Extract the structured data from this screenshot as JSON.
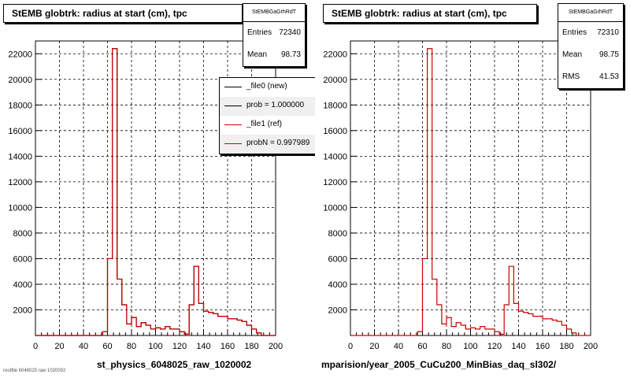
{
  "colors": {
    "new": "#000000",
    "ref": "#cc0000",
    "grid": "#000000",
    "frame": "#000000"
  },
  "left": {
    "title": "StEMB globtrk: radius at start (cm), tpc",
    "stats": {
      "name": "StEMBGaGrhRdT",
      "entries_label": "Entries",
      "entries": "72340",
      "mean_label": "Mean",
      "mean": "98.73"
    },
    "legend": [
      {
        "label": "_file0 (new)",
        "color": "#000000"
      },
      {
        "label": "prob = 1.000000",
        "color": "#000000"
      },
      {
        "label": "_file1 (ref)",
        "color": "#cc0000"
      },
      {
        "label": "probN = 0.997989",
        "color": "#cc0000"
      }
    ],
    "x_caption": "st_physics_6048025_raw_1020002",
    "footer": "rootfile 6048025 raw 1020002"
  },
  "right": {
    "title": "StEMB globtrk: radius at start (cm), tpc",
    "stats": {
      "name": "StEMBGaGrhRdT",
      "entries_label": "Entries",
      "entries": "72310",
      "mean_label": "Mean",
      "mean": "98.75",
      "rms_label": "RMS",
      "rms": "41.53"
    },
    "x_caption": "mparision/year_2005_CuCu200_MinBias_daq_sl302/"
  },
  "chart_data": [
    {
      "type": "histogram",
      "title": "StEMB globtrk: radius at start (cm), tpc",
      "xlabel": "st_physics_6048025_raw_1020002",
      "xlim": [
        0,
        200
      ],
      "ylim": [
        0,
        23000
      ],
      "x_ticks": [
        0,
        20,
        40,
        60,
        80,
        100,
        120,
        140,
        160,
        180,
        200
      ],
      "y_ticks": [
        2000,
        4000,
        6000,
        8000,
        10000,
        12000,
        14000,
        16000,
        18000,
        20000,
        22000
      ],
      "grid": true,
      "bin_width": 4,
      "bin_edges_start": 0,
      "series": [
        {
          "name": "_file0 (new)",
          "color": "#000000",
          "values": [
            0,
            0,
            0,
            0,
            0,
            0,
            0,
            0,
            0,
            0,
            0,
            0,
            0,
            0,
            300,
            6000,
            22400,
            4400,
            2400,
            900,
            1400,
            700,
            1000,
            800,
            500,
            600,
            500,
            700,
            500,
            500,
            300,
            100,
            2400,
            5400,
            2500,
            1900,
            1800,
            1700,
            1500,
            1500,
            1300,
            1300,
            1200,
            1100,
            800,
            500,
            200,
            0,
            0,
            0
          ]
        },
        {
          "name": "_file1 (ref)",
          "color": "#cc0000",
          "values": [
            0,
            0,
            0,
            0,
            0,
            0,
            0,
            0,
            0,
            0,
            0,
            0,
            0,
            0,
            300,
            6000,
            22400,
            4400,
            2400,
            900,
            1400,
            700,
            1000,
            800,
            500,
            600,
            500,
            700,
            500,
            500,
            300,
            100,
            2400,
            5400,
            2500,
            1900,
            1800,
            1700,
            1500,
            1500,
            1300,
            1300,
            1200,
            1100,
            800,
            500,
            200,
            0,
            0,
            0
          ]
        }
      ]
    },
    {
      "type": "histogram",
      "title": "StEMB globtrk: radius at start (cm), tpc",
      "xlabel": "mparision/year_2005_CuCu200_MinBias_daq_sl302/",
      "xlim": [
        0,
        200
      ],
      "ylim": [
        0,
        23000
      ],
      "x_ticks": [
        0,
        20,
        40,
        60,
        80,
        100,
        120,
        140,
        160,
        180,
        200
      ],
      "y_ticks": [
        2000,
        4000,
        6000,
        8000,
        10000,
        12000,
        14000,
        16000,
        18000,
        20000,
        22000
      ],
      "grid": true,
      "bin_width": 4,
      "bin_edges_start": 0,
      "series": [
        {
          "name": "",
          "color": "#cc0000",
          "values": [
            0,
            0,
            0,
            0,
            0,
            0,
            0,
            0,
            0,
            0,
            0,
            0,
            0,
            0,
            300,
            6000,
            22400,
            4400,
            2400,
            900,
            1400,
            700,
            1000,
            800,
            500,
            600,
            500,
            700,
            500,
            500,
            300,
            100,
            2400,
            5400,
            2500,
            1900,
            1800,
            1700,
            1500,
            1500,
            1300,
            1300,
            1200,
            1100,
            800,
            500,
            200,
            0,
            0,
            0
          ]
        }
      ]
    }
  ]
}
